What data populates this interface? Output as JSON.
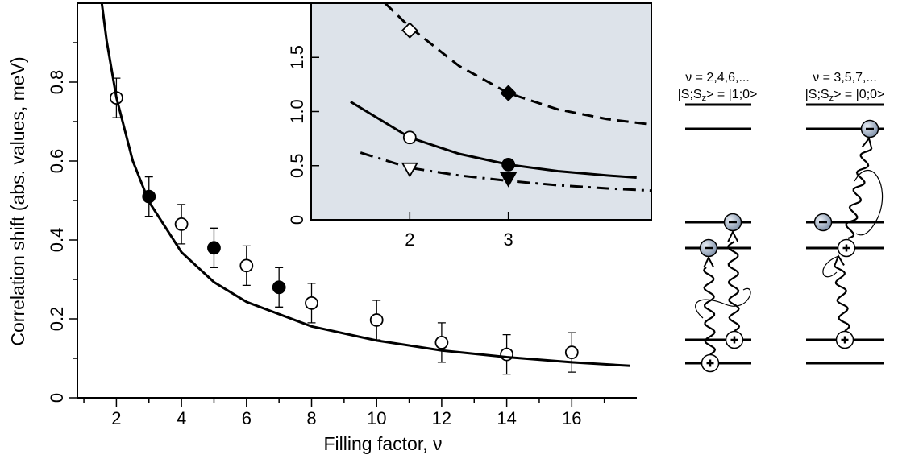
{
  "chart_data": [
    {
      "type": "scatter",
      "xlabel": "Filling factor,  ν",
      "ylabel": "Correlation shift (abs. values, meV)",
      "xlim": [
        0.8,
        18
      ],
      "xticks": [
        2,
        4,
        6,
        8,
        10,
        12,
        14,
        16
      ],
      "xminorticks": [
        1,
        3,
        5,
        7,
        9,
        11,
        13,
        15,
        17
      ],
      "ylim": [
        0,
        1.0
      ],
      "yticks": [
        0,
        0.2,
        0.4,
        0.6,
        0.8
      ],
      "yminorticks": [
        0.1,
        0.3,
        0.5,
        0.7,
        0.9
      ],
      "series": [
        {
          "marker": "circle",
          "filled": false,
          "color": "#000000",
          "x": [
            2,
            4,
            6,
            8,
            10,
            12,
            14,
            16
          ],
          "values": [
            0.76,
            0.44,
            0.335,
            0.24,
            0.197,
            0.14,
            0.11,
            0.115
          ],
          "errors": [
            0.05,
            0.05,
            0.05,
            0.05,
            0.05,
            0.05,
            0.05,
            0.05
          ]
        },
        {
          "marker": "circle",
          "filled": true,
          "color": "#000000",
          "x": [
            3,
            5,
            7
          ],
          "values": [
            0.51,
            0.38,
            0.28
          ],
          "errors": [
            0.05,
            0.05,
            0.05
          ]
        },
        {
          "type": "line",
          "dash": "solid",
          "color": "#000000",
          "x": [
            1.55,
            1.7,
            2,
            2.5,
            3,
            4,
            5,
            6,
            8,
            10,
            12,
            14,
            16,
            17.8
          ],
          "values": [
            1.0,
            0.905,
            0.761,
            0.601,
            0.497,
            0.369,
            0.293,
            0.243,
            0.181,
            0.145,
            0.12,
            0.103,
            0.09,
            0.081
          ]
        }
      ]
    },
    {
      "type": "scatter",
      "background": "#dde3ea",
      "xlim": [
        1,
        4.45
      ],
      "xticks": [
        2,
        3
      ],
      "ylim": [
        0,
        2.0
      ],
      "yticks": [
        0,
        0.5,
        {
          "value": 1,
          "label": "1.0"
        },
        1.5
      ],
      "series": [
        {
          "type": "line",
          "dash": "dashed",
          "color": "#000000",
          "x": [
            1.75,
            2,
            2.5,
            3,
            3.5,
            4,
            4.45
          ],
          "values": [
            2.0,
            1.78,
            1.42,
            1.17,
            1.02,
            0.93,
            0.88
          ]
        },
        {
          "type": "line",
          "dash": "solid",
          "color": "#000000",
          "x": [
            1.4,
            2,
            2.5,
            3,
            3.5,
            4,
            4.3
          ],
          "values": [
            1.09,
            0.76,
            0.61,
            0.51,
            0.45,
            0.41,
            0.39
          ]
        },
        {
          "type": "line",
          "dash": "dashdot",
          "color": "#000000",
          "x": [
            1.5,
            2,
            2.5,
            3,
            3.5,
            4,
            4.45
          ],
          "values": [
            0.62,
            0.48,
            0.41,
            0.36,
            0.32,
            0.29,
            0.27
          ]
        },
        {
          "marker": "diamond",
          "filled": false,
          "color": "#000000",
          "x": [
            2
          ],
          "values": [
            1.75
          ]
        },
        {
          "marker": "diamond",
          "filled": true,
          "color": "#000000",
          "x": [
            3
          ],
          "values": [
            1.17
          ]
        },
        {
          "marker": "circle",
          "filled": false,
          "color": "#000000",
          "x": [
            2
          ],
          "values": [
            0.76
          ]
        },
        {
          "marker": "circle",
          "filled": true,
          "color": "#000000",
          "x": [
            3
          ],
          "values": [
            0.51
          ]
        },
        {
          "marker": "triangle-down",
          "filled": false,
          "color": "#000000",
          "x": [
            2
          ],
          "values": [
            0.47
          ]
        },
        {
          "marker": "triangle-down",
          "filled": true,
          "color": "#000000",
          "x": [
            3
          ],
          "values": [
            0.38
          ]
        }
      ]
    }
  ],
  "diagram": {
    "columns": [
      {
        "title": "ν = 2,4,6,...",
        "state_prefix": "|S;S",
        "state_sub": "z",
        "state_suffix": "> = |1;0>"
      },
      {
        "title": "ν = 3,5,7,...",
        "state_prefix": "|S;S",
        "state_sub": "z",
        "state_suffix": "> = |0;0>"
      }
    ]
  }
}
